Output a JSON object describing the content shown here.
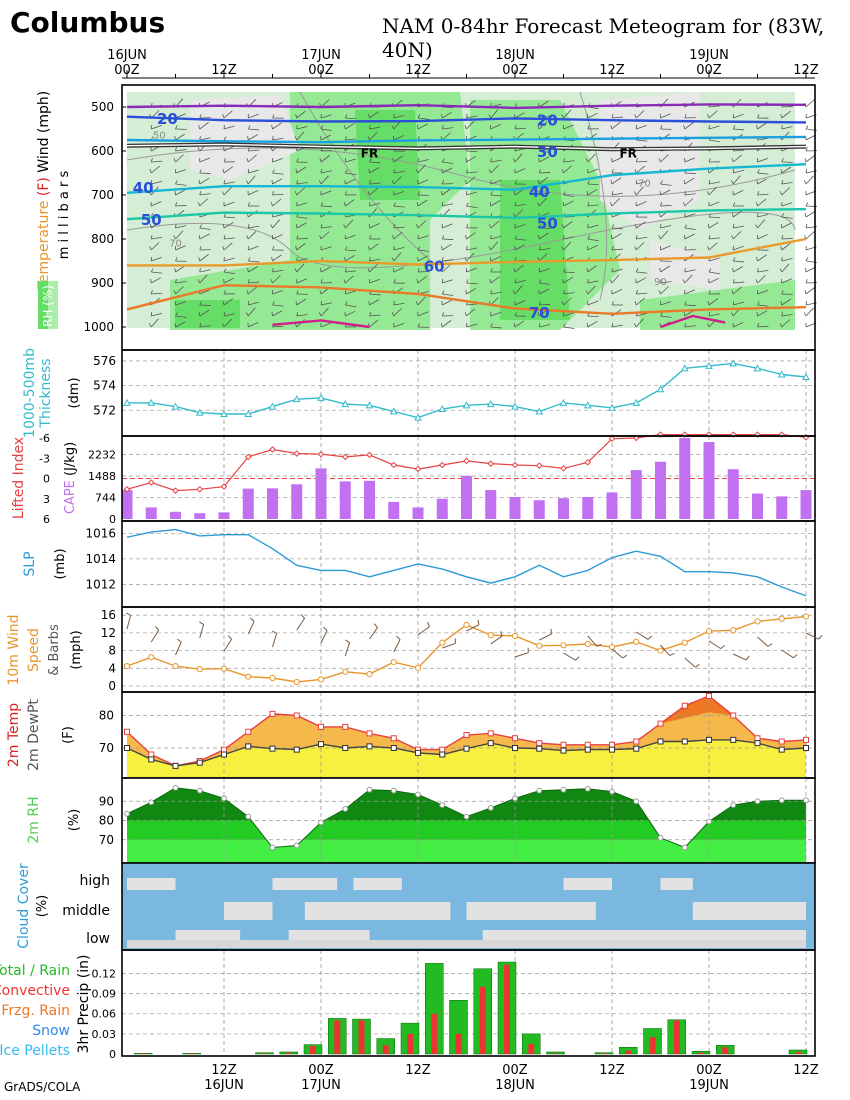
{
  "header": {
    "title": "Columbus",
    "subtitle": "NAM 0-84hr Forecast Meteogram for (83W, 40N)",
    "credit": "GrADS/COLA"
  },
  "time_axis": {
    "top_labels": [
      {
        "l1": "16JUN",
        "l2": "00Z",
        "t": 0
      },
      {
        "l1": "",
        "l2": "12Z",
        "t": 12
      },
      {
        "l1": "17JUN",
        "l2": "00Z",
        "t": 24
      },
      {
        "l1": "",
        "l2": "12Z",
        "t": 36
      },
      {
        "l1": "18JUN",
        "l2": "00Z",
        "t": 48
      },
      {
        "l1": "",
        "l2": "12Z",
        "t": 60
      },
      {
        "l1": "19JUN",
        "l2": "00Z",
        "t": 72
      },
      {
        "l1": "",
        "l2": "12Z",
        "t": 84
      }
    ],
    "bottom_labels": [
      {
        "l1": "12Z",
        "l2": "16JUN",
        "t": 12
      },
      {
        "l1": "00Z",
        "l2": "17JUN",
        "t": 24
      },
      {
        "l1": "12Z",
        "l2": "",
        "t": 36
      },
      {
        "l1": "00Z",
        "l2": "18JUN",
        "t": 48
      },
      {
        "l1": "12Z",
        "l2": "",
        "t": 60
      },
      {
        "l1": "00Z",
        "l2": "19JUN",
        "t": 72
      },
      {
        "l1": "12Z",
        "l2": "",
        "t": 84
      }
    ]
  },
  "colors": {
    "thickness": "#33bbcc",
    "lifted": "#e84040",
    "cape": "#c070f0",
    "slp": "#2a9ad8",
    "wind": "#e8962a",
    "temp_line": "#e84040",
    "temp_fill": "#f5b84a",
    "dew_fill": "#f8f040",
    "rh": "#22cc22",
    "cloud": "#7ab8e0",
    "precip_total": "#22bb22",
    "precip_conv": "#ee3333"
  },
  "chart_data": [
    {
      "id": "upper",
      "type": "heatmap",
      "ylabel": "Temperature (F) Wind (mph)",
      "ylabel2": "m i l l i b a r s",
      "rh_label": "RH (%)",
      "y_ticks": [
        500,
        600,
        700,
        800,
        900,
        1000
      ],
      "isotherm_labels": [
        {
          "text": "20",
          "t": 5,
          "p": 525
        },
        {
          "text": "20",
          "t": 52,
          "p": 528
        },
        {
          "text": "30",
          "t": 52,
          "p": 600
        },
        {
          "text": "40",
          "t": 2,
          "p": 682
        },
        {
          "text": "40",
          "t": 51,
          "p": 691
        },
        {
          "text": "50",
          "t": 3,
          "p": 755
        },
        {
          "text": "50",
          "t": 52,
          "p": 762
        },
        {
          "text": "60",
          "t": 38,
          "p": 860
        },
        {
          "text": "70",
          "t": 51,
          "p": 966
        }
      ],
      "front_labels": [
        {
          "text": "FR",
          "t": 30,
          "p": 603
        },
        {
          "text": "FR",
          "t": 62,
          "p": 603
        }
      ],
      "rh_labels": [
        {
          "text": "50",
          "t": 4,
          "p": 562
        },
        {
          "text": "70",
          "t": 64,
          "p": 672
        },
        {
          "text": "70",
          "t": 6,
          "p": 808
        },
        {
          "text": "90",
          "t": 66,
          "p": 895
        }
      ]
    },
    {
      "id": "thickness",
      "type": "line",
      "ylabel": "1000-500mb Thickness",
      "unit": "(dm)",
      "y_ticks": [
        572,
        574,
        576
      ],
      "ylim": [
        570.4,
        576.4
      ],
      "x": [
        0,
        3,
        6,
        9,
        12,
        15,
        18,
        21,
        24,
        27,
        30,
        33,
        36,
        39,
        42,
        45,
        48,
        51,
        54,
        57,
        60,
        63,
        66,
        69,
        72,
        75,
        78,
        81,
        84
      ],
      "values": [
        572.6,
        572.6,
        572.3,
        571.8,
        571.7,
        571.7,
        572.3,
        572.9,
        573.0,
        572.5,
        572.4,
        571.9,
        571.4,
        572.1,
        572.4,
        572.5,
        572.3,
        571.9,
        572.6,
        572.4,
        572.2,
        572.6,
        573.7,
        575.4,
        575.6,
        575.8,
        575.4,
        574.9,
        574.7
      ]
    },
    {
      "id": "lifted_cape",
      "type": "bar",
      "ylabel": "Lifted Index",
      "ylabel2": "CAPE (J/kg)",
      "li_ticks": [
        -6,
        -3,
        0,
        3,
        6
      ],
      "cape_ticks": [
        0,
        744,
        1488,
        2232
      ],
      "x": [
        0,
        3,
        6,
        9,
        12,
        15,
        18,
        21,
        24,
        27,
        30,
        33,
        36,
        39,
        42,
        45,
        48,
        51,
        54,
        57,
        60,
        63,
        66,
        69,
        72,
        75,
        78,
        81,
        84
      ],
      "li": [
        1.6,
        0.6,
        1.8,
        1.6,
        1.2,
        -3.2,
        -4.3,
        -3.7,
        -3.6,
        -3.2,
        -3.5,
        -2.0,
        -1.4,
        -2.0,
        -2.6,
        -2.2,
        -2.0,
        -1.9,
        -1.5,
        -2.4,
        -5.9,
        -6.0,
        -6.5,
        -6.5,
        -6.5,
        -6.5,
        -6.5,
        -6.5,
        -6.1
      ],
      "cape": [
        1000,
        400,
        250,
        200,
        230,
        1050,
        1060,
        1200,
        1750,
        1300,
        1320,
        590,
        400,
        700,
        1490,
        1000,
        760,
        650,
        720,
        760,
        920,
        1690,
        1980,
        2800,
        2660,
        1720,
        880,
        780,
        1000
      ]
    },
    {
      "id": "slp",
      "type": "line",
      "ylabel": "SLP",
      "unit": "(mb)",
      "y_ticks": [
        1012,
        1014,
        1016
      ],
      "ylim": [
        1010.7,
        1016.5
      ],
      "x": [
        0,
        3,
        6,
        9,
        12,
        15,
        18,
        21,
        24,
        27,
        30,
        33,
        36,
        39,
        42,
        45,
        48,
        51,
        54,
        57,
        60,
        63,
        66,
        69,
        72,
        75,
        78,
        81,
        84
      ],
      "values": [
        1015.7,
        1016.1,
        1016.3,
        1015.8,
        1015.9,
        1015.9,
        1014.8,
        1013.5,
        1013.1,
        1013.1,
        1012.6,
        1013.1,
        1013.6,
        1013.2,
        1012.6,
        1012.1,
        1012.6,
        1013.5,
        1012.6,
        1013.1,
        1014.1,
        1014.6,
        1014.2,
        1013.0,
        1013.0,
        1012.9,
        1012.6,
        1011.8,
        1011.1
      ]
    },
    {
      "id": "wind10m",
      "type": "line",
      "ylabel": "10m Wind Speed & Barbs",
      "unit": "(mph)",
      "y_ticks": [
        0,
        4,
        8,
        12,
        16
      ],
      "ylim": [
        0,
        16.5
      ],
      "x": [
        0,
        3,
        6,
        9,
        12,
        15,
        18,
        21,
        24,
        27,
        30,
        33,
        36,
        39,
        42,
        45,
        48,
        51,
        54,
        57,
        60,
        63,
        66,
        69,
        72,
        75,
        78,
        81,
        84
      ],
      "values": [
        4.5,
        6.5,
        4.5,
        3.8,
        3.9,
        2.1,
        1.8,
        0.9,
        1.5,
        3.2,
        2.7,
        5.4,
        4.1,
        9.8,
        13.8,
        11.5,
        11.3,
        9.1,
        9.2,
        9.5,
        8.8,
        10.0,
        8.0,
        9.8,
        12.4,
        12.6,
        14.6,
        15.2,
        15.7
      ]
    },
    {
      "id": "temp",
      "type": "area",
      "ylabel": "2m Temp",
      "ylabel2": "2m DewPt",
      "unit": "(F)",
      "y_ticks": [
        70,
        80
      ],
      "ylim": [
        62,
        86
      ],
      "x": [
        0,
        3,
        6,
        9,
        12,
        15,
        18,
        21,
        24,
        27,
        30,
        33,
        36,
        39,
        42,
        45,
        48,
        51,
        54,
        57,
        60,
        63,
        66,
        69,
        72,
        75,
        78,
        81,
        84
      ],
      "temp": [
        75.0,
        68.0,
        64.5,
        66.0,
        69.5,
        75.0,
        80.5,
        80.0,
        76.5,
        76.5,
        74.5,
        73.0,
        69.5,
        69.5,
        74.0,
        74.5,
        73.0,
        71.5,
        71.0,
        71.0,
        71.0,
        72.0,
        77.5,
        83.0,
        86.0,
        80.0,
        73.0,
        72.0,
        72.5
      ],
      "dew": [
        70.0,
        66.5,
        64.5,
        65.5,
        68.0,
        70.5,
        69.8,
        69.5,
        71.2,
        70.0,
        70.5,
        70.0,
        68.5,
        68.0,
        69.8,
        71.5,
        70.0,
        69.8,
        69.2,
        69.5,
        69.5,
        69.8,
        72.0,
        72.0,
        72.5,
        72.5,
        71.5,
        69.5,
        70.0
      ]
    },
    {
      "id": "rh2m",
      "type": "area",
      "ylabel": "2m RH",
      "unit": "(%)",
      "y_ticks": [
        70,
        80,
        90
      ],
      "ylim": [
        60,
        100
      ],
      "x": [
        0,
        3,
        6,
        9,
        12,
        15,
        18,
        21,
        24,
        27,
        30,
        33,
        36,
        39,
        42,
        45,
        48,
        51,
        54,
        57,
        60,
        63,
        66,
        69,
        72,
        75,
        78,
        81,
        84
      ],
      "values": [
        83.5,
        89.5,
        97.0,
        95.5,
        91.5,
        82.0,
        66.0,
        67.0,
        79.0,
        86.0,
        96.0,
        95.5,
        93.5,
        88.0,
        82.0,
        86.5,
        91.5,
        95.5,
        96.0,
        96.5,
        95.0,
        90.0,
        71.0,
        66.0,
        79.5,
        88.0,
        90.0,
        90.5,
        90.5
      ]
    },
    {
      "id": "cloud",
      "type": "area",
      "ylabel": "Cloud Cover",
      "unit": "(%)",
      "layers": [
        "high",
        "middle",
        "low"
      ]
    },
    {
      "id": "precip",
      "type": "bar",
      "ylabel": "3hr Precip (in)",
      "legend": [
        {
          "label": "Total / Rain",
          "color": "#22bb22"
        },
        {
          "label": "Convective",
          "color": "#ee3333"
        },
        {
          "label": "Frzg. Rain",
          "color": "#ee7722"
        },
        {
          "label": "Snow",
          "color": "#3388ee"
        },
        {
          "label": "Ice Pellets",
          "color": "#33bbee"
        }
      ],
      "y_ticks": [
        {
          "v": 0,
          "label": "0"
        },
        {
          "v": 0.03,
          "label": "0.03"
        },
        {
          "v": 0.06,
          "label": "0.06"
        },
        {
          "v": 0.09,
          "label": "0.09"
        },
        {
          "v": 0.12,
          "label": "0.12"
        }
      ],
      "ylim": [
        0,
        0.14
      ],
      "x": [
        3,
        6,
        9,
        12,
        15,
        18,
        21,
        24,
        27,
        30,
        33,
        36,
        39,
        42,
        45,
        48,
        51,
        54,
        57,
        60,
        63,
        66,
        69,
        72,
        75,
        78,
        81,
        84
      ],
      "total": [
        0.001,
        0.0,
        0.001,
        0.0,
        0.0,
        0.002,
        0.003,
        0.014,
        0.053,
        0.052,
        0.023,
        0.046,
        0.135,
        0.08,
        0.127,
        0.137,
        0.03,
        0.003,
        0.0,
        0.002,
        0.01,
        0.038,
        0.051,
        0.004,
        0.013,
        0.0,
        0.0,
        0.006
      ],
      "conv": [
        0.001,
        0.0,
        0.001,
        0.0,
        0.0,
        0.001,
        0.002,
        0.012,
        0.05,
        0.05,
        0.013,
        0.03,
        0.06,
        0.03,
        0.1,
        0.133,
        0.015,
        0.001,
        0.0,
        0.001,
        0.005,
        0.025,
        0.05,
        0.002,
        0.01,
        0.0,
        0.0,
        0.003
      ]
    }
  ]
}
